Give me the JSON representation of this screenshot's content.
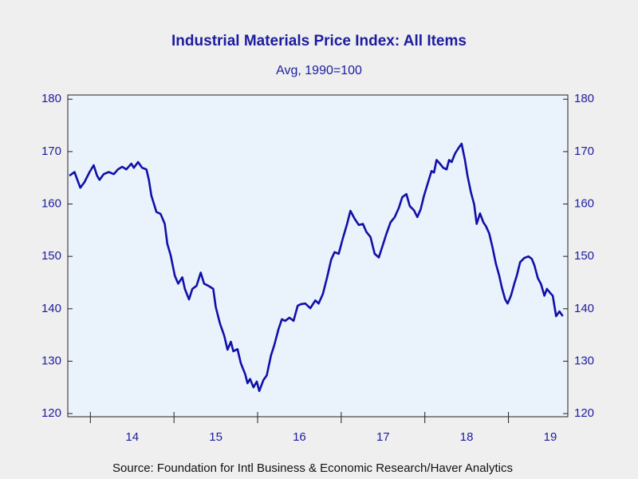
{
  "chart_data": {
    "type": "line",
    "title": "Industrial Materials Price Index: All Items",
    "subtitle": "Avg, 1990=100",
    "source": "Source:  Foundation for Intl Business & Economic Research/Haver Analytics",
    "xlim": [
      13.73,
      19.71
    ],
    "ylim": [
      119.4,
      180.8
    ],
    "yticks": [
      120,
      130,
      140,
      150,
      160,
      170,
      180
    ],
    "xticks": [
      {
        "value": 14.5,
        "label": "14"
      },
      {
        "value": 15.5,
        "label": "15"
      },
      {
        "value": 16.5,
        "label": "16"
      },
      {
        "value": 17.5,
        "label": "17"
      },
      {
        "value": 18.5,
        "label": "18"
      },
      {
        "value": 19.5,
        "label": "19"
      }
    ],
    "right_axis": true,
    "series": [
      {
        "color": "#1010a8",
        "x": [
          13.75,
          13.81,
          13.88,
          13.93,
          13.99,
          14.04,
          14.08,
          14.11,
          14.16,
          14.22,
          14.28,
          14.33,
          14.38,
          14.43,
          14.49,
          14.52,
          14.57,
          14.62,
          14.67,
          14.7,
          14.73,
          14.79,
          14.84,
          14.89,
          14.92,
          14.96,
          15.01,
          15.05,
          15.1,
          15.13,
          15.18,
          15.22,
          15.27,
          15.32,
          15.36,
          15.41,
          15.47,
          15.5,
          15.55,
          15.6,
          15.64,
          15.68,
          15.71,
          15.76,
          15.8,
          15.85,
          15.88,
          15.91,
          15.95,
          15.99,
          16.02,
          16.07,
          16.11,
          16.16,
          16.2,
          16.25,
          16.29,
          16.33,
          16.38,
          16.43,
          16.48,
          16.52,
          16.57,
          16.63,
          16.69,
          16.73,
          16.78,
          16.83,
          16.88,
          16.92,
          16.97,
          17.02,
          17.07,
          17.11,
          17.16,
          17.21,
          17.26,
          17.3,
          17.35,
          17.4,
          17.45,
          17.5,
          17.54,
          17.59,
          17.64,
          17.69,
          17.73,
          17.78,
          17.82,
          17.87,
          17.91,
          17.95,
          17.99,
          18.04,
          18.08,
          18.11,
          18.14,
          18.18,
          18.22,
          18.26,
          18.29,
          18.32,
          18.36,
          18.4,
          18.44,
          18.48,
          18.51,
          18.55,
          18.59,
          18.62,
          18.66,
          18.7,
          18.73,
          18.77,
          18.81,
          18.85,
          18.89,
          18.92,
          18.96,
          18.99,
          19.03,
          19.07,
          19.1,
          19.14,
          19.19,
          19.24,
          19.28,
          19.31,
          19.35,
          19.39,
          19.43,
          19.46,
          19.5,
          19.53,
          19.57,
          19.61,
          19.65
        ],
        "values": [
          165.4,
          166.1,
          163.1,
          164.2,
          166.1,
          167.4,
          165.4,
          164.6,
          165.7,
          166.1,
          165.7,
          166.6,
          167.1,
          166.6,
          167.7,
          166.9,
          168.0,
          166.9,
          166.6,
          164.6,
          161.6,
          158.5,
          158.1,
          156.2,
          152.4,
          150.2,
          146.3,
          144.8,
          146.0,
          143.8,
          141.8,
          143.8,
          144.4,
          146.9,
          144.8,
          144.4,
          143.8,
          140.3,
          137.2,
          134.9,
          132.2,
          133.7,
          131.9,
          132.3,
          129.6,
          127.6,
          125.8,
          126.6,
          125.0,
          126.1,
          124.3,
          126.4,
          127.3,
          131.1,
          133.1,
          136.1,
          138.0,
          137.7,
          138.3,
          137.7,
          140.6,
          140.9,
          141.0,
          140.1,
          141.6,
          141.0,
          142.8,
          145.9,
          149.4,
          150.8,
          150.5,
          153.5,
          156.2,
          158.7,
          157.2,
          156.0,
          156.2,
          154.7,
          153.7,
          150.5,
          149.8,
          152.3,
          154.3,
          156.5,
          157.5,
          159.3,
          161.3,
          161.9,
          159.6,
          158.8,
          157.5,
          159.0,
          161.6,
          164.2,
          166.3,
          166.0,
          168.4,
          167.7,
          166.9,
          166.6,
          168.4,
          168.0,
          169.6,
          170.6,
          171.5,
          168.4,
          165.4,
          162.3,
          159.9,
          156.2,
          158.2,
          156.5,
          155.8,
          154.4,
          151.7,
          148.6,
          146.3,
          144.1,
          141.8,
          141.0,
          142.5,
          144.8,
          146.3,
          148.9,
          149.7,
          150.0,
          149.5,
          148.3,
          145.9,
          144.7,
          142.5,
          143.8,
          143.0,
          142.5,
          138.6,
          139.5,
          138.6
        ]
      }
    ]
  }
}
